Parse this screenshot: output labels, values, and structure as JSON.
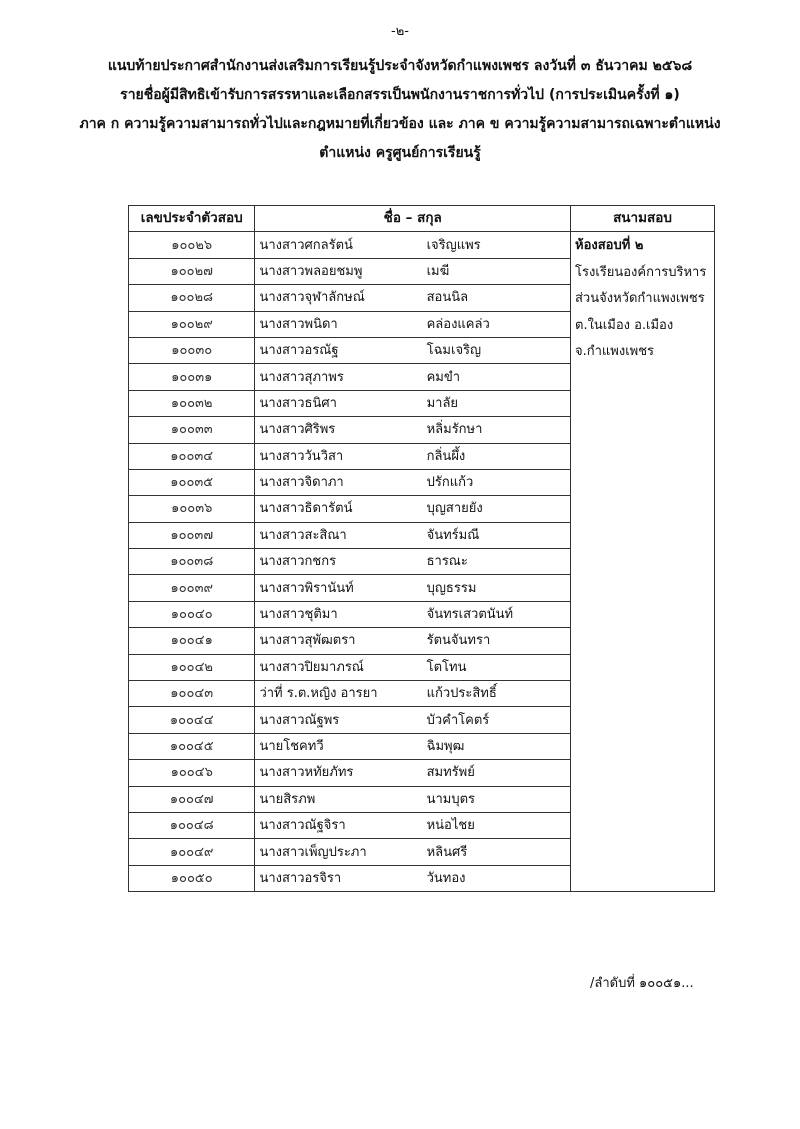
{
  "page_number": "-๒-",
  "header": [
    "แนบท้ายประกาศสำนักงานส่งเสริมการเรียนรู้ประจำจังหวัดกำแพงเพชร ลงวันที่ ๓ ธันวาคม ๒๕๖๘",
    "รายชื่อผู้มีสิทธิเข้ารับการสรรหาและเลือกสรรเป็นพนักงานราชการทั่วไป (การประเมินครั้งที่ ๑)",
    "ภาค ก ความรู้ความสามารถทั่วไปและกฎหมายที่เกี่ยวข้อง และ ภาค ข ความรู้ความสามารถเฉพาะตำแหน่ง",
    "ตำแหน่ง ครูศูนย์การเรียนรู้"
  ],
  "table": {
    "columns": [
      "เลขประจำตัวสอบ",
      "ชื่อ – สกุล",
      "สนามสอบ"
    ],
    "venue": [
      "ห้องสอบที่ ๒",
      "โรงเรียนองค์การบริหาร",
      "ส่วนจังหวัดกำแพงเพชร",
      "ต.ในเมือง อ.เมือง",
      "จ.กำแพงเพชร"
    ],
    "rows": [
      {
        "id": "๑๐๐๒๖",
        "first": "นางสาวศกลรัตน์",
        "last": "เจริญแพร"
      },
      {
        "id": "๑๐๐๒๗",
        "first": "นางสาวพลอยชมพู",
        "last": "เมฆี"
      },
      {
        "id": "๑๐๐๒๘",
        "first": "นางสาวจุฬาลักษณ์",
        "last": "สอนนิล"
      },
      {
        "id": "๑๐๐๒๙",
        "first": "นางสาวพนิดา",
        "last": "คล่องแคล่ว"
      },
      {
        "id": "๑๐๐๓๐",
        "first": "นางสาวอรณัฐ",
        "last": "โฉมเจริญ"
      },
      {
        "id": "๑๐๐๓๑",
        "first": "นางสาวสุภาพร",
        "last": "คมขำ"
      },
      {
        "id": "๑๐๐๓๒",
        "first": "นางสาวธนิศา",
        "last": "มาลัย"
      },
      {
        "id": "๑๐๐๓๓",
        "first": "นางสาวศิริพร",
        "last": "หลิ่มรักษา"
      },
      {
        "id": "๑๐๐๓๔",
        "first": "นางสาววันวิสา",
        "last": "กลิ่นผึ้ง"
      },
      {
        "id": "๑๐๐๓๕",
        "first": "นางสาวจิดาภา",
        "last": "ปรักแก้ว"
      },
      {
        "id": "๑๐๐๓๖",
        "first": "นางสาวธิดารัตน์",
        "last": "บุญสายยัง"
      },
      {
        "id": "๑๐๐๓๗",
        "first": "นางสาวสะสิณา",
        "last": "จันทร์มณี"
      },
      {
        "id": "๑๐๐๓๘",
        "first": "นางสาวกชกร",
        "last": "ธารณะ"
      },
      {
        "id": "๑๐๐๓๙",
        "first": "นางสาวพิรานันท์",
        "last": "บุญธรรม"
      },
      {
        "id": "๑๐๐๔๐",
        "first": "นางสาวชุติมา",
        "last": "จันทรเสวตนันท์"
      },
      {
        "id": "๑๐๐๔๑",
        "first": "นางสาวสุพัฒตรา",
        "last": "รัตนจันทรา"
      },
      {
        "id": "๑๐๐๔๒",
        "first": "นางสาวปิยมาภรณ์",
        "last": "โตโทน"
      },
      {
        "id": "๑๐๐๔๓",
        "first": "ว่าที่ ร.ต.หญิง อารยา",
        "last": "แก้วประสิทธิ์"
      },
      {
        "id": "๑๐๐๔๔",
        "first": "นางสาวณัฐพร",
        "last": "บัวคำโคตร์"
      },
      {
        "id": "๑๐๐๔๕",
        "first": "นายโชคทวี",
        "last": "ฉิมพุฒ"
      },
      {
        "id": "๑๐๐๔๖",
        "first": "นางสาวหทัยภัทร",
        "last": "สมทรัพย์"
      },
      {
        "id": "๑๐๐๔๗",
        "first": "นายสิรภพ",
        "last": "นามบุตร"
      },
      {
        "id": "๑๐๐๔๘",
        "first": "นางสาวณัฐจิรา",
        "last": "หน่อไชย"
      },
      {
        "id": "๑๐๐๔๙",
        "first": "นางสาวเพ็ญประภา",
        "last": "หลินศรี"
      },
      {
        "id": "๑๐๐๕๐",
        "first": "นางสาวอรจิรา",
        "last": "วันทอง"
      }
    ]
  },
  "footer": "/ลำดับที่ ๑๐๐๕๑..."
}
